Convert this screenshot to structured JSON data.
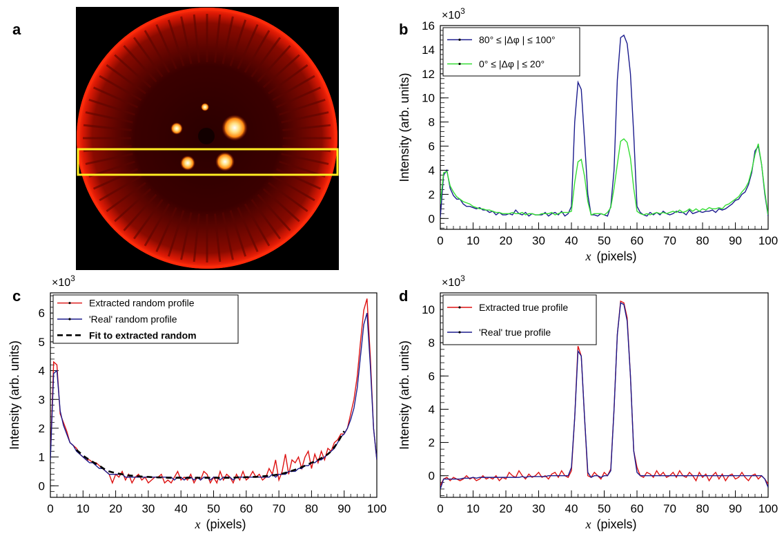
{
  "panel_labels": [
    "a",
    "b",
    "c",
    "d"
  ],
  "chart_data": [
    {
      "panel": "b",
      "type": "line",
      "xlabel_var": "x",
      "xlabel_unit": "(pixels)",
      "ylabel": "Intensity (arb. units)",
      "y_multiplier": "×10",
      "y_exponent": "3",
      "xlim": [
        0,
        100
      ],
      "ylim": [
        -0.9,
        16
      ],
      "xticks": [
        0,
        10,
        20,
        30,
        40,
        50,
        60,
        70,
        80,
        90,
        100
      ],
      "yticks": [
        0,
        2,
        4,
        6,
        8,
        10,
        12,
        14,
        16
      ],
      "x": [
        0,
        1,
        2,
        3,
        4,
        5,
        6,
        7,
        8,
        9,
        10,
        11,
        12,
        13,
        14,
        15,
        16,
        17,
        18,
        19,
        20,
        21,
        22,
        23,
        24,
        25,
        26,
        27,
        28,
        29,
        30,
        31,
        32,
        33,
        34,
        35,
        36,
        37,
        38,
        39,
        40,
        41,
        42,
        43,
        44,
        45,
        46,
        47,
        48,
        49,
        50,
        51,
        52,
        53,
        54,
        55,
        56,
        57,
        58,
        59,
        60,
        61,
        62,
        63,
        64,
        65,
        66,
        67,
        68,
        69,
        70,
        71,
        72,
        73,
        74,
        75,
        76,
        77,
        78,
        79,
        80,
        81,
        82,
        83,
        84,
        85,
        86,
        87,
        88,
        89,
        90,
        91,
        92,
        93,
        94,
        95,
        96,
        97,
        98,
        99,
        100
      ],
      "series": [
        {
          "name": "80° ≤ |Δφ | ≤ 100°",
          "color": "#1a1a8c",
          "values": [
            0.1,
            3.6,
            4.0,
            2.5,
            1.9,
            1.6,
            1.6,
            1.2,
            1.0,
            1.0,
            0.9,
            0.8,
            0.9,
            0.7,
            0.7,
            0.5,
            0.6,
            0.3,
            0.5,
            0.3,
            0.3,
            0.4,
            0.3,
            0.7,
            0.4,
            0.3,
            0.5,
            0.2,
            0.4,
            0.3,
            0.3,
            0.3,
            0.5,
            0.2,
            0.4,
            0.5,
            0.3,
            0.6,
            0.2,
            0.4,
            1.0,
            8.0,
            11.3,
            10.7,
            6.5,
            2.0,
            0.3,
            0.3,
            0.2,
            0.4,
            0.3,
            0.2,
            1.0,
            4.0,
            11.5,
            15.0,
            15.2,
            14.5,
            12.0,
            7.0,
            1.0,
            0.5,
            0.3,
            0.2,
            0.5,
            0.3,
            0.5,
            0.3,
            0.6,
            0.4,
            0.3,
            0.4,
            0.6,
            0.5,
            0.5,
            0.3,
            0.7,
            0.4,
            0.5,
            0.6,
            0.5,
            0.6,
            0.6,
            0.7,
            0.5,
            0.8,
            0.7,
            0.8,
            1.0,
            1.2,
            1.5,
            1.6,
            2.0,
            2.2,
            2.8,
            3.8,
            5.6,
            6.0,
            4.5,
            2.0,
            0.2
          ]
        },
        {
          "name": "0° ≤ |Δφ | ≤ 20°",
          "color": "#33dd33",
          "values": [
            1.2,
            3.8,
            3.9,
            2.7,
            2.2,
            1.8,
            1.6,
            1.4,
            1.3,
            1.2,
            1.0,
            0.9,
            0.8,
            0.8,
            0.7,
            0.7,
            0.6,
            0.5,
            0.5,
            0.4,
            0.4,
            0.4,
            0.5,
            0.4,
            0.4,
            0.5,
            0.3,
            0.4,
            0.4,
            0.3,
            0.3,
            0.4,
            0.4,
            0.4,
            0.5,
            0.3,
            0.4,
            0.5,
            0.5,
            0.5,
            0.6,
            3.0,
            4.7,
            4.9,
            3.5,
            1.4,
            0.3,
            0.4,
            0.4,
            0.4,
            0.3,
            0.5,
            0.9,
            2.5,
            4.5,
            6.4,
            6.6,
            6.3,
            5.0,
            2.5,
            0.6,
            0.4,
            0.3,
            0.4,
            0.3,
            0.4,
            0.5,
            0.4,
            0.5,
            0.4,
            0.5,
            0.6,
            0.5,
            0.7,
            0.5,
            0.6,
            0.8,
            0.6,
            0.8,
            0.6,
            0.8,
            0.7,
            0.9,
            0.8,
            0.8,
            0.9,
            0.8,
            1.1,
            1.2,
            1.4,
            1.6,
            1.8,
            2.2,
            2.5,
            3.0,
            4.0,
            5.3,
            6.2,
            4.5,
            2.2,
            0.3
          ]
        }
      ]
    },
    {
      "panel": "c",
      "type": "line",
      "xlabel_var": "x",
      "xlabel_unit": "(pixels)",
      "ylabel": "Intensity (arb. units)",
      "y_multiplier": "×10",
      "y_exponent": "3",
      "xlim": [
        0,
        100
      ],
      "ylim": [
        -0.4,
        6.7
      ],
      "xticks": [
        0,
        10,
        20,
        30,
        40,
        50,
        60,
        70,
        80,
        90,
        100
      ],
      "yticks": [
        0,
        1,
        2,
        3,
        4,
        5,
        6
      ],
      "x": [
        0,
        1,
        2,
        3,
        4,
        5,
        6,
        7,
        8,
        9,
        10,
        11,
        12,
        13,
        14,
        15,
        16,
        17,
        18,
        19,
        20,
        21,
        22,
        23,
        24,
        25,
        26,
        27,
        28,
        29,
        30,
        31,
        32,
        33,
        34,
        35,
        36,
        37,
        38,
        39,
        40,
        41,
        42,
        43,
        44,
        45,
        46,
        47,
        48,
        49,
        50,
        51,
        52,
        53,
        54,
        55,
        56,
        57,
        58,
        59,
        60,
        61,
        62,
        63,
        64,
        65,
        66,
        67,
        68,
        69,
        70,
        71,
        72,
        73,
        74,
        75,
        76,
        77,
        78,
        79,
        80,
        81,
        82,
        83,
        84,
        85,
        86,
        87,
        88,
        89,
        90,
        91,
        92,
        93,
        94,
        95,
        96,
        97,
        98,
        99,
        100
      ],
      "series": [
        {
          "name": "Extracted random profile",
          "color": "#dd1111",
          "values": [
            1.0,
            4.3,
            4.2,
            2.5,
            2.2,
            1.9,
            1.5,
            1.4,
            1.3,
            1.1,
            1.0,
            0.9,
            0.9,
            0.8,
            0.8,
            0.7,
            0.6,
            0.5,
            0.4,
            0.1,
            0.4,
            0.3,
            0.5,
            0.2,
            0.4,
            0.1,
            0.3,
            0.4,
            0.2,
            0.3,
            0.1,
            0.2,
            0.3,
            0.3,
            0.4,
            0.1,
            0.2,
            0.1,
            0.3,
            0.5,
            0.2,
            0.3,
            0.2,
            0.4,
            0.1,
            0.3,
            0.2,
            0.5,
            0.4,
            0.1,
            0.3,
            0.1,
            0.5,
            0.2,
            0.4,
            0.3,
            0.1,
            0.4,
            0.2,
            0.5,
            0.2,
            0.3,
            0.5,
            0.3,
            0.4,
            0.2,
            0.3,
            0.6,
            0.4,
            0.9,
            0.2,
            0.5,
            1.1,
            0.4,
            0.9,
            0.8,
            1.0,
            0.6,
            1.0,
            1.2,
            0.6,
            1.1,
            0.8,
            1.2,
            0.9,
            1.3,
            1.2,
            1.5,
            1.6,
            1.8,
            1.8,
            2.0,
            2.5,
            3.0,
            3.8,
            5.0,
            6.1,
            6.5,
            4.5,
            2.0,
            0.9
          ]
        },
        {
          "name": "'Real' random profile",
          "color": "#1a1a8c",
          "values": [
            0.9,
            3.9,
            4.0,
            2.6,
            2.1,
            1.8,
            1.5,
            1.4,
            1.2,
            1.1,
            1.0,
            0.9,
            0.8,
            0.8,
            0.7,
            0.6,
            0.6,
            0.5,
            0.4,
            0.4,
            0.4,
            0.4,
            0.4,
            0.3,
            0.3,
            0.3,
            0.3,
            0.3,
            0.3,
            0.3,
            0.3,
            0.3,
            0.3,
            0.3,
            0.3,
            0.3,
            0.3,
            0.3,
            0.2,
            0.3,
            0.3,
            0.2,
            0.3,
            0.3,
            0.2,
            0.3,
            0.2,
            0.3,
            0.3,
            0.2,
            0.3,
            0.3,
            0.2,
            0.3,
            0.3,
            0.3,
            0.2,
            0.3,
            0.3,
            0.3,
            0.3,
            0.3,
            0.3,
            0.3,
            0.3,
            0.3,
            0.3,
            0.3,
            0.4,
            0.3,
            0.4,
            0.4,
            0.4,
            0.5,
            0.5,
            0.5,
            0.6,
            0.6,
            0.7,
            0.7,
            0.8,
            0.8,
            0.9,
            0.9,
            1.0,
            1.1,
            1.2,
            1.3,
            1.5,
            1.7,
            1.8,
            2.0,
            2.3,
            2.7,
            3.4,
            4.5,
            5.6,
            6.0,
            4.2,
            2.0,
            0.9
          ]
        },
        {
          "name": "Fit to extracted random",
          "color": "#000000",
          "dashed": true,
          "x_from": 8,
          "x_to": 90,
          "values": [
            null,
            null,
            null,
            null,
            null,
            null,
            null,
            null,
            1.25,
            1.15,
            1.05,
            0.97,
            0.9,
            0.83,
            0.76,
            0.7,
            0.62,
            0.55,
            0.5,
            0.47,
            0.44,
            0.42,
            0.4,
            0.38,
            0.36,
            0.35,
            0.34,
            0.33,
            0.32,
            0.31,
            0.31,
            0.3,
            0.3,
            0.29,
            0.29,
            0.29,
            0.28,
            0.28,
            0.28,
            0.28,
            0.28,
            0.28,
            0.28,
            0.28,
            0.28,
            0.28,
            0.28,
            0.28,
            0.28,
            0.28,
            0.28,
            0.28,
            0.28,
            0.28,
            0.28,
            0.28,
            0.28,
            0.29,
            0.29,
            0.29,
            0.3,
            0.3,
            0.31,
            0.31,
            0.32,
            0.33,
            0.34,
            0.35,
            0.36,
            0.38,
            0.4,
            0.42,
            0.45,
            0.48,
            0.52,
            0.56,
            0.6,
            0.65,
            0.7,
            0.75,
            0.8,
            0.85,
            0.9,
            0.96,
            1.02,
            1.1,
            1.2,
            1.35,
            1.5,
            1.7,
            1.9,
            null,
            null,
            null,
            null,
            null,
            null,
            null,
            null,
            null,
            null
          ]
        }
      ]
    },
    {
      "panel": "d",
      "type": "line",
      "xlabel_var": "x",
      "xlabel_unit": "(pixels)",
      "ylabel": "Intensity (arb. units)",
      "y_multiplier": "×10",
      "y_exponent": "3",
      "xlim": [
        0,
        100
      ],
      "ylim": [
        -1.3,
        11
      ],
      "xticks": [
        0,
        10,
        20,
        30,
        40,
        50,
        60,
        70,
        80,
        90,
        100
      ],
      "yticks": [
        0,
        2,
        4,
        6,
        8,
        10
      ],
      "x": [
        0,
        1,
        2,
        3,
        4,
        5,
        6,
        7,
        8,
        9,
        10,
        11,
        12,
        13,
        14,
        15,
        16,
        17,
        18,
        19,
        20,
        21,
        22,
        23,
        24,
        25,
        26,
        27,
        28,
        29,
        30,
        31,
        32,
        33,
        34,
        35,
        36,
        37,
        38,
        39,
        40,
        41,
        42,
        43,
        44,
        45,
        46,
        47,
        48,
        49,
        50,
        51,
        52,
        53,
        54,
        55,
        56,
        57,
        58,
        59,
        60,
        61,
        62,
        63,
        64,
        65,
        66,
        67,
        68,
        69,
        70,
        71,
        72,
        73,
        74,
        75,
        76,
        77,
        78,
        79,
        80,
        81,
        82,
        83,
        84,
        85,
        86,
        87,
        88,
        89,
        90,
        91,
        92,
        93,
        94,
        95,
        96,
        97,
        98,
        99,
        100
      ],
      "series": [
        {
          "name": "Extracted true profile",
          "color": "#dd1111",
          "values": [
            -0.6,
            -0.2,
            -0.1,
            -0.3,
            -0.1,
            -0.2,
            -0.3,
            -0.2,
            0.0,
            -0.2,
            -0.1,
            -0.3,
            -0.2,
            0.0,
            -0.2,
            -0.1,
            -0.2,
            0.0,
            -0.3,
            -0.1,
            -0.2,
            0.2,
            0.0,
            -0.1,
            0.3,
            0.0,
            -0.2,
            0.1,
            -0.1,
            0.0,
            0.2,
            -0.1,
            0.0,
            -0.2,
            0.1,
            0.2,
            -0.1,
            0.3,
            0.0,
            -0.1,
            0.3,
            3.5,
            7.8,
            7.2,
            3.5,
            0.0,
            -0.1,
            0.2,
            0.0,
            -0.2,
            0.2,
            0.0,
            0.4,
            4.0,
            8.5,
            10.5,
            10.4,
            9.5,
            6.0,
            1.5,
            0.5,
            0.0,
            -0.1,
            0.2,
            0.1,
            -0.1,
            0.3,
            0.0,
            0.2,
            -0.1,
            0.0,
            0.2,
            -0.1,
            0.3,
            0.0,
            -0.1,
            0.2,
            0.0,
            -0.3,
            0.2,
            -0.1,
            0.1,
            -0.3,
            0.0,
            0.2,
            -0.2,
            0.1,
            -0.3,
            0.0,
            0.1,
            -0.2,
            -0.1,
            0.2,
            -0.1,
            -0.3,
            0.0,
            0.1,
            -0.2,
            0.0,
            -0.2,
            -0.5
          ]
        },
        {
          "name": "'Real' true profile",
          "color": "#1a1a8c",
          "values": [
            -0.8,
            -0.2,
            -0.2,
            -0.2,
            -0.2,
            -0.2,
            -0.2,
            -0.15,
            -0.15,
            -0.15,
            -0.1,
            -0.15,
            -0.1,
            -0.1,
            -0.1,
            -0.1,
            -0.1,
            -0.1,
            -0.1,
            -0.1,
            -0.1,
            -0.1,
            -0.1,
            -0.1,
            -0.1,
            -0.05,
            -0.1,
            -0.05,
            -0.05,
            -0.05,
            -0.05,
            -0.05,
            -0.05,
            0.0,
            0.0,
            0.0,
            0.0,
            0.0,
            0.0,
            0.0,
            0.5,
            3.5,
            7.5,
            7.2,
            3.5,
            0.2,
            -0.1,
            0.0,
            0.0,
            -0.1,
            0.0,
            0.0,
            0.3,
            4.0,
            8.5,
            10.4,
            10.3,
            9.3,
            6.0,
            1.5,
            0.2,
            0.0,
            0.0,
            0.0,
            0.0,
            0.0,
            0.0,
            0.0,
            0.0,
            0.0,
            0.0,
            0.0,
            0.0,
            0.0,
            0.0,
            0.0,
            0.0,
            0.0,
            0.0,
            0.0,
            0.0,
            0.0,
            0.0,
            0.0,
            0.0,
            0.0,
            0.0,
            0.0,
            0.0,
            0.0,
            0.0,
            0.0,
            0.0,
            0.0,
            0.0,
            0.0,
            0.0,
            0.0,
            0.0,
            -0.2,
            -0.7
          ]
        }
      ]
    }
  ]
}
